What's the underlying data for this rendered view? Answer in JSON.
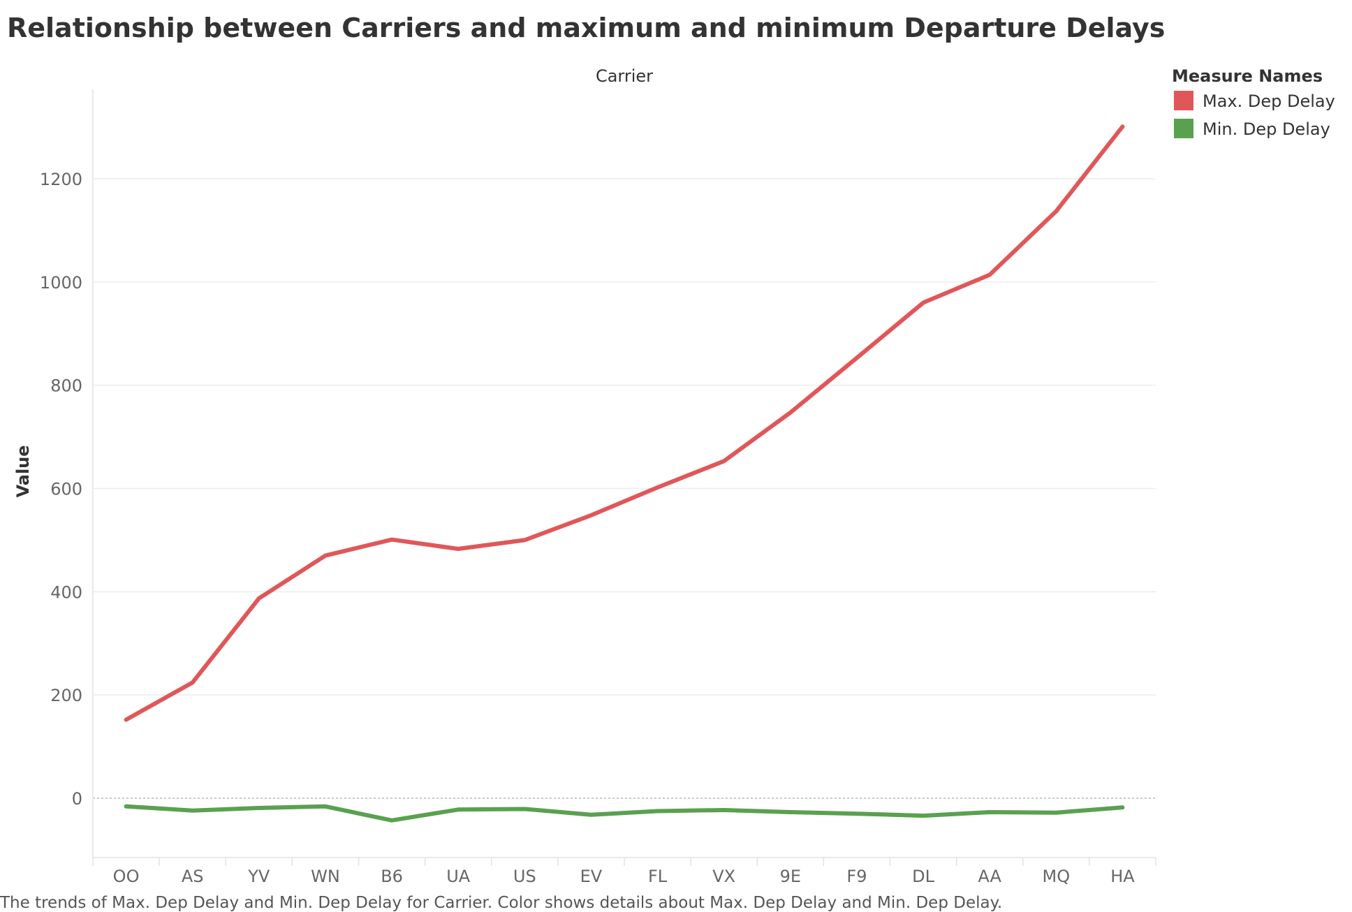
{
  "title": "Relationship between Carriers and maximum and minimum Departure Delays",
  "caption": "The trends of Max. Dep Delay and Min. Dep Delay for Carrier.  Color shows details about Max. Dep Delay and Min. Dep Delay.",
  "legend": {
    "title": "Measure Names",
    "items": [
      {
        "label": "Max. Dep Delay",
        "color": "#e05759"
      },
      {
        "label": "Min. Dep Delay",
        "color": "#59a14f"
      }
    ]
  },
  "chart_data": {
    "type": "line",
    "title": "Relationship between Carriers and maximum and minimum Departure Delays",
    "xlabel": "Carrier",
    "ylabel": "Value",
    "categories": [
      "OO",
      "AS",
      "YV",
      "WN",
      "B6",
      "UA",
      "US",
      "EV",
      "FL",
      "VX",
      "9E",
      "F9",
      "DL",
      "AA",
      "MQ",
      "HA"
    ],
    "series": [
      {
        "name": "Max. Dep Delay",
        "color": "#e05759",
        "values": [
          152,
          224,
          387,
          470,
          501,
          483,
          500,
          548,
          602,
          653,
          747,
          853,
          960,
          1014,
          1137,
          1301
        ]
      },
      {
        "name": "Min. Dep Delay",
        "color": "#59a14f",
        "values": [
          -16,
          -24,
          -19,
          -16,
          -43,
          -22,
          -21,
          -32,
          -25,
          -23,
          -27,
          -30,
          -34,
          -27,
          -28,
          -18
        ]
      }
    ],
    "ylim": [
      -110,
      1370
    ],
    "yticks": [
      0,
      200,
      400,
      600,
      800,
      1000,
      1200
    ],
    "grid": true,
    "legend_position": "top-right"
  }
}
